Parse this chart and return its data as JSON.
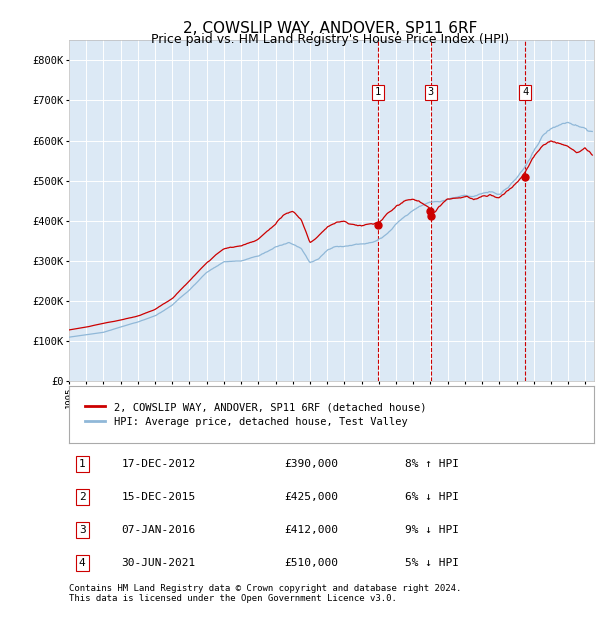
{
  "title": "2, COWSLIP WAY, ANDOVER, SP11 6RF",
  "subtitle": "Price paid vs. HM Land Registry's House Price Index (HPI)",
  "title_fontsize": 11,
  "subtitle_fontsize": 9,
  "ylabel_ticks": [
    "£0",
    "£100K",
    "£200K",
    "£300K",
    "£400K",
    "£500K",
    "£600K",
    "£700K",
    "£800K"
  ],
  "ytick_values": [
    0,
    100000,
    200000,
    300000,
    400000,
    500000,
    600000,
    700000,
    800000
  ],
  "ylim": [
    0,
    850000
  ],
  "xlim_start": 1995.0,
  "xlim_end": 2025.5,
  "background_color": "#ffffff",
  "plot_bg_color": "#dce9f5",
  "grid_color": "#ffffff",
  "hpi_line_color": "#90b8d8",
  "price_line_color": "#cc0000",
  "sale_marker_color": "#cc0000",
  "vline_color": "#cc0000",
  "transactions": [
    {
      "label": "1",
      "date_x": 2012.96,
      "price": 390000,
      "show_vline": true
    },
    {
      "label": "2",
      "date_x": 2015.96,
      "price": 425000,
      "show_vline": false
    },
    {
      "label": "3",
      "date_x": 2016.02,
      "price": 412000,
      "show_vline": true
    },
    {
      "label": "4",
      "date_x": 2021.5,
      "price": 510000,
      "show_vline": true
    }
  ],
  "transaction_labels": [
    {
      "num": "1",
      "date": "17-DEC-2012",
      "price": "£390,000",
      "pct": "8%",
      "dir": "↑",
      "rel": "HPI"
    },
    {
      "num": "2",
      "date": "15-DEC-2015",
      "price": "£425,000",
      "pct": "6%",
      "dir": "↓",
      "rel": "HPI"
    },
    {
      "num": "3",
      "date": "07-JAN-2016",
      "price": "£412,000",
      "pct": "9%",
      "dir": "↓",
      "rel": "HPI"
    },
    {
      "num": "4",
      "date": "30-JUN-2021",
      "price": "£510,000",
      "pct": "5%",
      "dir": "↓",
      "rel": "HPI"
    }
  ],
  "footer": "Contains HM Land Registry data © Crown copyright and database right 2024.\nThis data is licensed under the Open Government Licence v3.0.",
  "legend_property_label": "2, COWSLIP WAY, ANDOVER, SP11 6RF (detached house)",
  "legend_hpi_label": "HPI: Average price, detached house, Test Valley"
}
